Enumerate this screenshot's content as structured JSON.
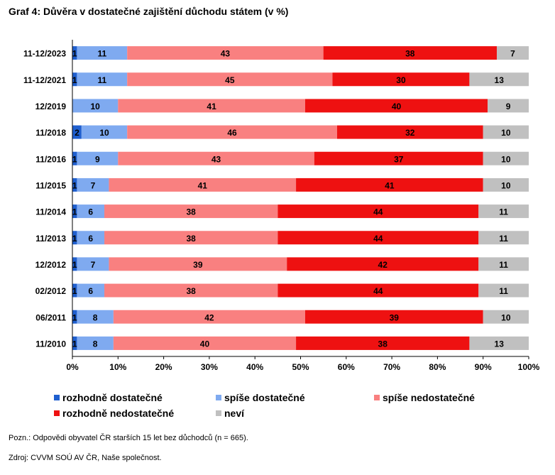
{
  "chart_data": {
    "type": "bar",
    "orientation": "horizontal",
    "stacked": true,
    "title": "Graf 4: Důvěra v dostatečné zajištění důchodu státem (v %)",
    "categories": [
      "11-12/2023",
      "11-12/2021",
      "12/2019",
      "11/2018",
      "11/2016",
      "11/2015",
      "11/2014",
      "11/2013",
      "12/2012",
      "02/2012",
      "06/2011",
      "11/2010"
    ],
    "series": [
      {
        "name": "rozhodně dostatečné",
        "color": "#1f5fcf",
        "values": [
          1,
          1,
          0,
          2,
          1,
          1,
          1,
          1,
          1,
          1,
          1,
          1
        ]
      },
      {
        "name": "spíše dostatečné",
        "color": "#7faaf0",
        "values": [
          11,
          11,
          10,
          10,
          9,
          7,
          6,
          6,
          7,
          6,
          8,
          8
        ]
      },
      {
        "name": "spíše nedostatečné",
        "color": "#f98080",
        "values": [
          43,
          45,
          41,
          46,
          43,
          41,
          38,
          38,
          39,
          38,
          42,
          40
        ]
      },
      {
        "name": "rozhodně nedostatečné",
        "color": "#ee1111",
        "values": [
          38,
          30,
          40,
          32,
          37,
          41,
          44,
          44,
          42,
          44,
          39,
          38
        ]
      },
      {
        "name": "neví",
        "color": "#c0c0c0",
        "values": [
          7,
          13,
          9,
          10,
          10,
          10,
          11,
          11,
          11,
          11,
          10,
          13
        ]
      }
    ],
    "xlim": [
      0,
      100
    ],
    "xticks": [
      "0%",
      "10%",
      "20%",
      "30%",
      "40%",
      "50%",
      "60%",
      "70%",
      "80%",
      "90%",
      "100%"
    ],
    "legend_position": "bottom",
    "grid": false
  },
  "note": "Pozn.: Odpovědi obyvatel ČR starších 15 let bez důchodců (n = 665).",
  "source": "Zdroj: CVVM SOÚ AV ČR, Naše společnost."
}
